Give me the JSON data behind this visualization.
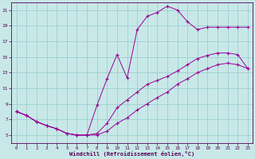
{
  "background_color": "#c8e8e8",
  "plot_bg_color": "#c8e8e8",
  "grid_color": "#9ecece",
  "line_color": "#990099",
  "marker_color": "#990099",
  "xlabel": "Windchill (Refroidissement éolien,°C)",
  "xlim": [
    -0.5,
    23.5
  ],
  "ylim": [
    4,
    22
  ],
  "yticks": [
    5,
    7,
    9,
    11,
    13,
    15,
    17,
    19,
    21
  ],
  "xticks": [
    0,
    1,
    2,
    3,
    4,
    5,
    6,
    7,
    8,
    9,
    10,
    11,
    12,
    13,
    14,
    15,
    16,
    17,
    18,
    19,
    20,
    21,
    22,
    23
  ],
  "series": [
    {
      "x": [
        0,
        1,
        2,
        3,
        4,
        5,
        6,
        7,
        8,
        9,
        10,
        11,
        12,
        13,
        14,
        15,
        16,
        17,
        18,
        19,
        20,
        21,
        22,
        23
      ],
      "y": [
        8,
        7.5,
        6.7,
        6.2,
        5.8,
        5.2,
        5.0,
        5.0,
        8.8,
        12.2,
        15.3,
        12.3,
        18.5,
        20.2,
        20.7,
        21.5,
        21.0,
        19.5,
        18.5,
        18.8,
        18.8,
        18.8,
        18.8,
        18.8
      ]
    },
    {
      "x": [
        0,
        1,
        2,
        3,
        4,
        5,
        6,
        7,
        8,
        9,
        10,
        11,
        12,
        13,
        14,
        15,
        16,
        17,
        18,
        19,
        20,
        21,
        22,
        23
      ],
      "y": [
        8,
        7.5,
        6.7,
        6.2,
        5.8,
        5.2,
        5.0,
        5.0,
        5.2,
        6.5,
        8.5,
        9.5,
        10.5,
        11.5,
        12.0,
        12.5,
        13.2,
        14.0,
        14.8,
        15.2,
        15.5,
        15.5,
        15.3,
        13.5
      ]
    },
    {
      "x": [
        0,
        1,
        2,
        3,
        4,
        5,
        6,
        7,
        8,
        9,
        10,
        11,
        12,
        13,
        14,
        15,
        16,
        17,
        18,
        19,
        20,
        21,
        22,
        23
      ],
      "y": [
        8,
        7.5,
        6.7,
        6.2,
        5.8,
        5.2,
        5.0,
        5.0,
        5.0,
        5.5,
        6.5,
        7.2,
        8.2,
        9.0,
        9.8,
        10.5,
        11.5,
        12.2,
        13.0,
        13.5,
        14.0,
        14.2,
        14.0,
        13.5
      ]
    }
  ]
}
